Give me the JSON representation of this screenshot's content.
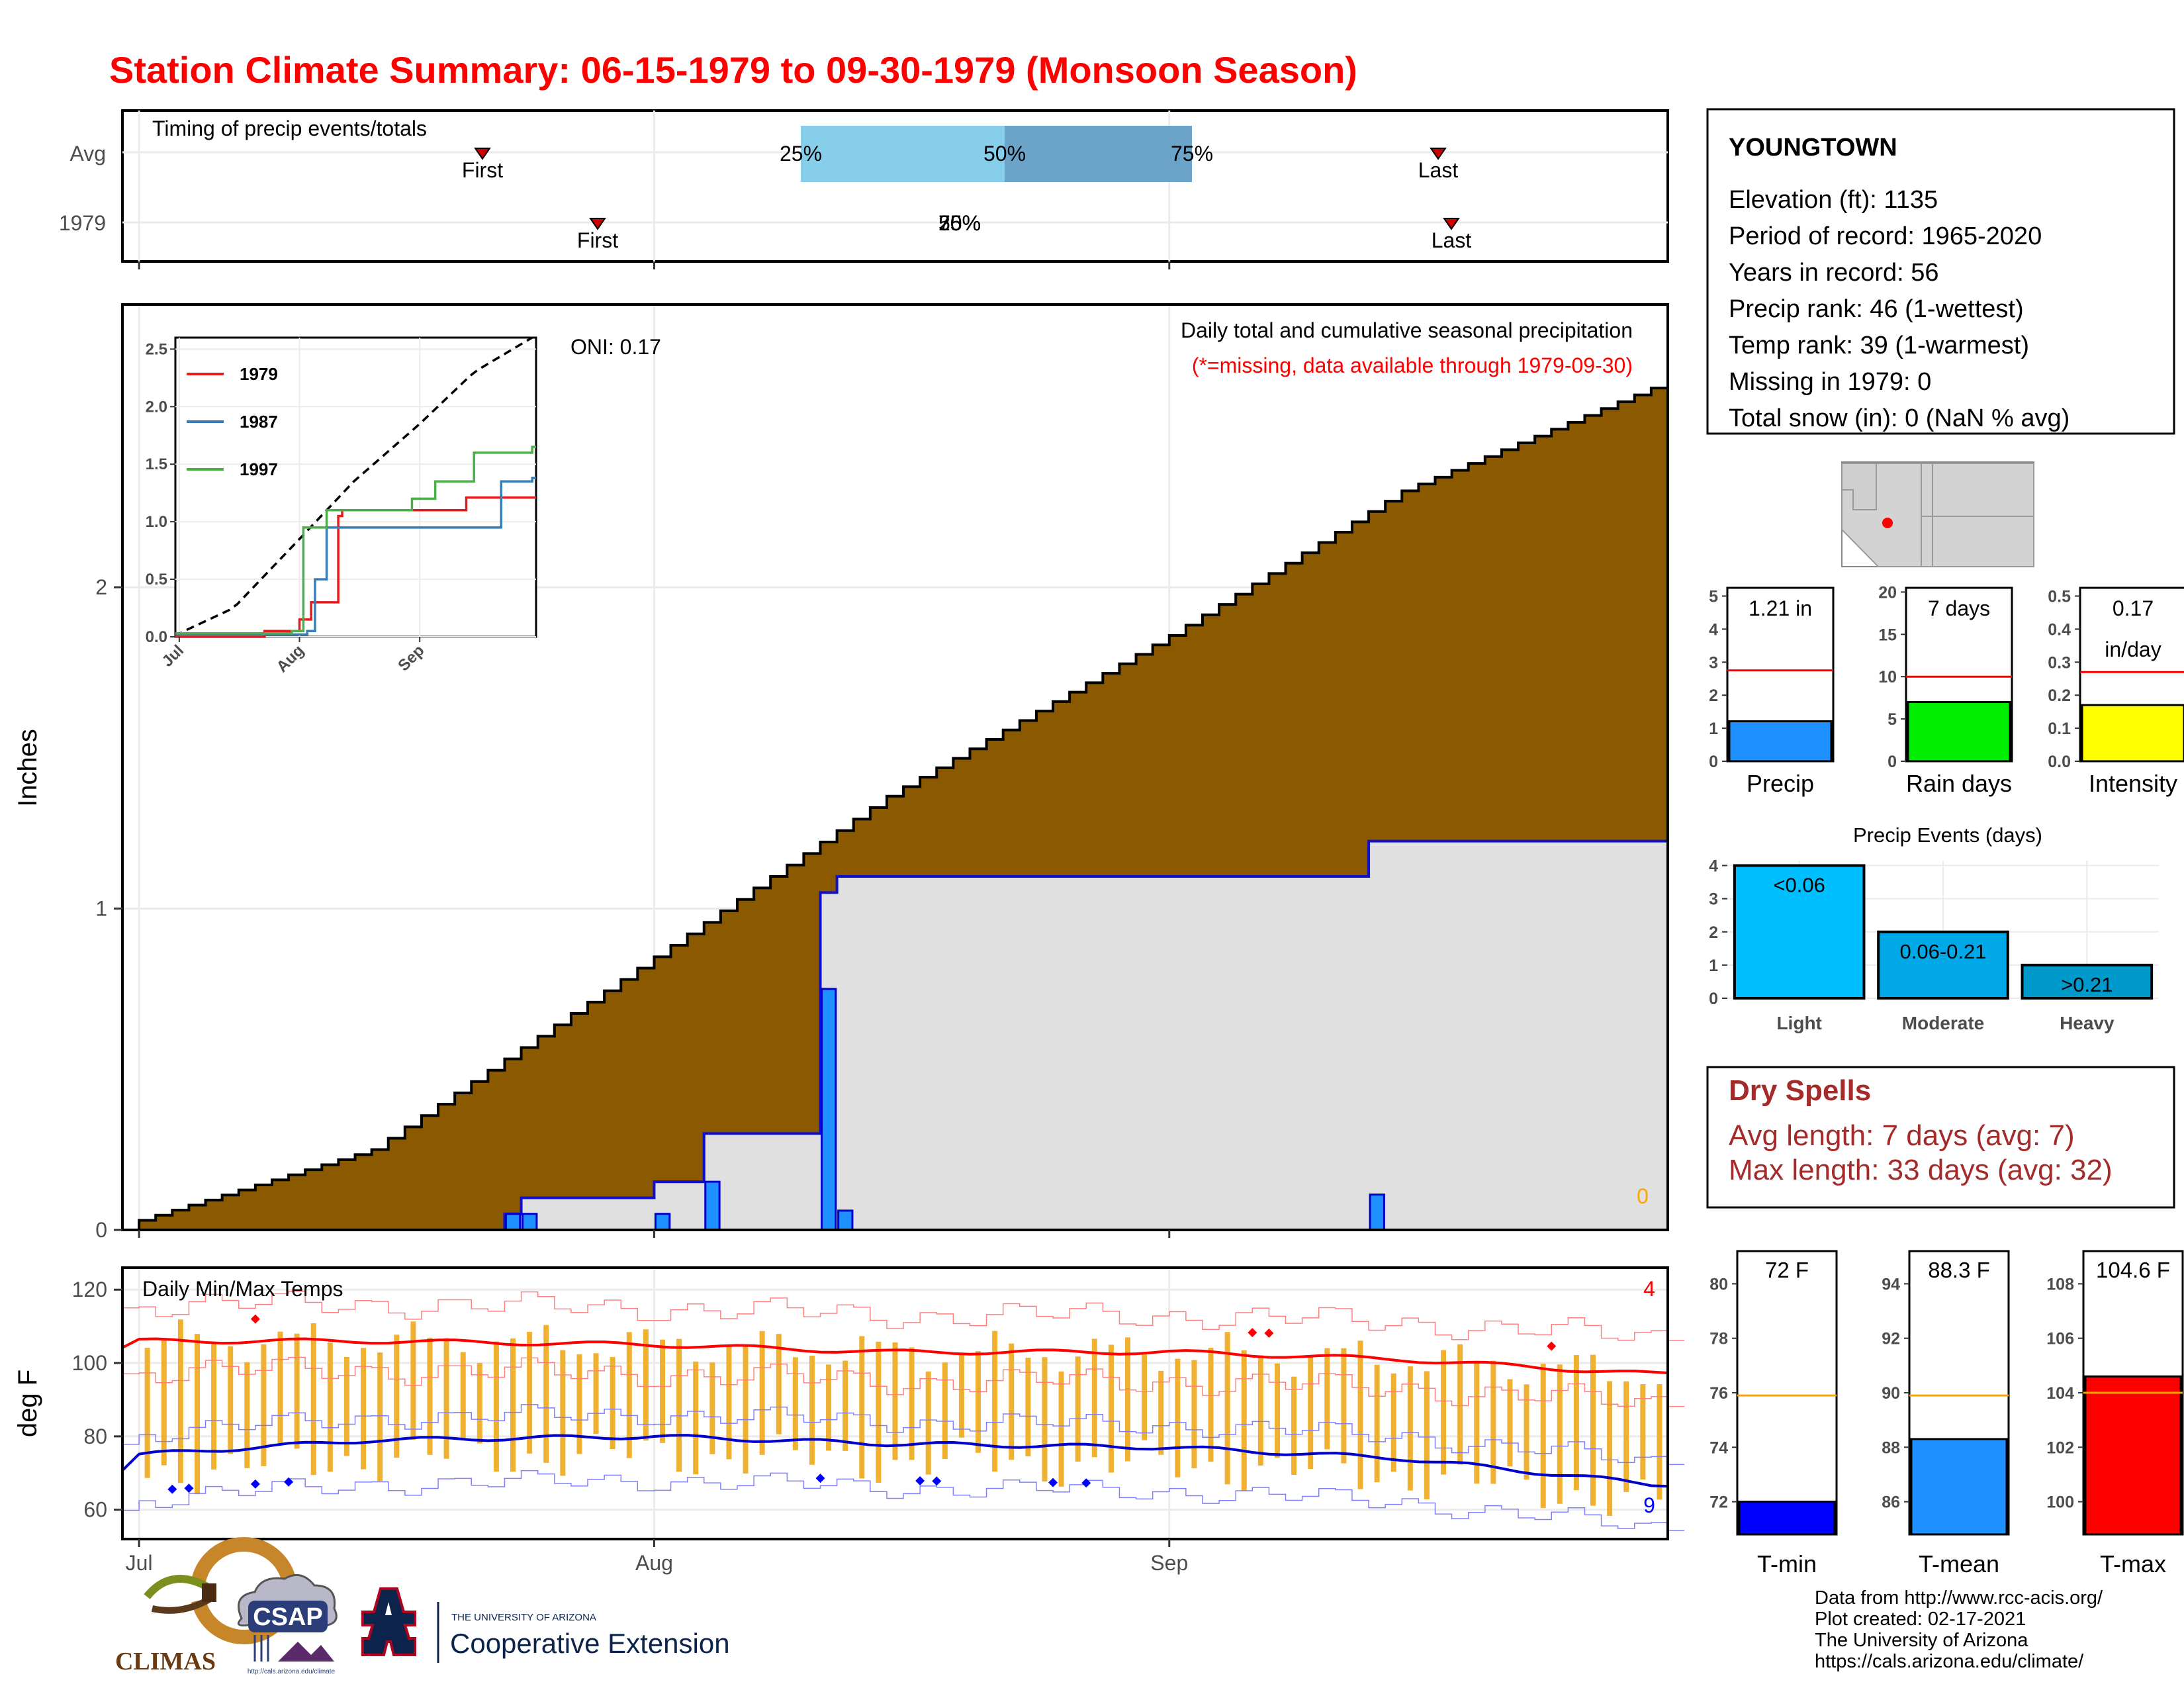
{
  "title": "Station Climate Summary: 06-15-1979 to 09-30-1979 (Monsoon Season)",
  "timing_panel": {
    "label": "Timing of precip events/totals",
    "rows": [
      "Avg",
      "1979"
    ],
    "avg": {
      "first": "First",
      "last": "Last",
      "p25": "25%",
      "p50": "50%",
      "p75": "75%"
    },
    "y1979": {
      "first": "First",
      "last": "Last",
      "overlap_labels": [
        "25%",
        "50%",
        "75%"
      ]
    }
  },
  "main_chart": {
    "ylabel": "Inches",
    "oni": "ONI: 0.17",
    "legend_title": "Daily total and cumulative seasonal precipitation",
    "legend_note": "(*=missing, data available through 1979-09-30)",
    "missing_count": "0",
    "yticks": [
      "0",
      "1",
      "2"
    ],
    "xticks": [
      "Jul",
      "Aug",
      "Sep"
    ],
    "colors": {
      "avg_cum": "#8B5A00",
      "cum_1979": "#1010CC",
      "daily": "#1E90FF",
      "panel_fill": "#E0E0E0"
    }
  },
  "inset": {
    "yticks": [
      "0.0",
      "0.5",
      "1.0",
      "1.5",
      "2.0",
      "2.5"
    ],
    "xticks": [
      "Jul",
      "Aug",
      "Sep"
    ],
    "legend": [
      {
        "name": "1979",
        "color": "#E41A1C"
      },
      {
        "name": "1987",
        "color": "#377EB8"
      },
      {
        "name": "1997",
        "color": "#4DAF4A"
      }
    ]
  },
  "temps": {
    "label": "Daily Min/Max Temps",
    "ylabel": "deg F",
    "yticks": [
      "60",
      "80",
      "100",
      "120"
    ],
    "xticks": [
      "Jul",
      "Aug",
      "Sep"
    ],
    "high_count": "4",
    "low_count": "9"
  },
  "station": {
    "name": "YOUNGTOWN",
    "lines": [
      "Elevation (ft): 1135",
      "Period of record: 1965-2020",
      "Years in record: 56",
      "Precip rank: 46 (1-wettest)",
      "Temp rank: 39 (1-warmest)",
      "Missing in 1979: 0",
      "Total snow (in): 0 (NaN % avg)"
    ]
  },
  "small_bars": [
    {
      "label": "Precip",
      "value_text": "1.21 in",
      "color": "#1E90FF",
      "yticks": [
        "0",
        "1",
        "2",
        "3",
        "4",
        "5"
      ]
    },
    {
      "label": "Rain days",
      "value_text": "7 days",
      "color": "#00EE00",
      "yticks": [
        "0",
        "5",
        "10",
        "15",
        "20"
      ]
    },
    {
      "label": "Intensity",
      "value_text": "0.17",
      "value_text2": "in/day",
      "color": "#FFFF00",
      "yticks": [
        "0.0",
        "0.1",
        "0.2",
        "0.3",
        "0.4",
        "0.5"
      ]
    }
  ],
  "precip_events": {
    "title": "Precip Events (days)",
    "yticks": [
      "0",
      "1",
      "2",
      "3",
      "4"
    ],
    "bars": [
      {
        "label": "Light",
        "value_text": "<0.06",
        "color": "#00BFFF"
      },
      {
        "label": "Moderate",
        "value_text": "0.06-0.21",
        "color": "#00A8E8"
      },
      {
        "label": "Heavy",
        "value_text": ">0.21",
        "color": "#0099CC"
      }
    ]
  },
  "dry_spells": {
    "title": "Dry Spells",
    "avg_line": "Avg length: 7 days (avg: 7)",
    "max_line": "Max length: 33 days (avg: 32)"
  },
  "temp_bars": [
    {
      "label": "T-min",
      "value_text": "72 F",
      "color": "#0000FF",
      "yticks": [
        "72",
        "74",
        "76",
        "78",
        "80"
      ]
    },
    {
      "label": "T-mean",
      "value_text": "88.3 F",
      "color": "#1E90FF",
      "yticks": [
        "86",
        "88",
        "90",
        "92",
        "94"
      ]
    },
    {
      "label": "T-max",
      "value_text": "104.6 F",
      "color": "#FF0000",
      "yticks": [
        "100",
        "102",
        "104",
        "106",
        "108"
      ]
    }
  ],
  "footer": {
    "lines": [
      "Data from http://www.rcc-acis.org/",
      "Plot created: 02-17-2021",
      "The University of Arizona",
      "https://cals.arizona.edu/climate/"
    ],
    "logos": {
      "climas": "CLIMAS",
      "csap": "CSAP",
      "csap_url": "http://cals.arizona.edu/climate",
      "ua_small": "THE UNIVERSITY OF ARIZONA",
      "ua_big": "Cooperative Extension"
    }
  },
  "chart_data": [
    {
      "type": "area",
      "title": "Daily total and cumulative seasonal precipitation",
      "ylabel": "Inches",
      "x_range": [
        "1979-06-15",
        "1979-09-30"
      ],
      "ylim": [
        0,
        2.6
      ],
      "series": [
        {
          "name": "avg cumulative",
          "x": [
            "06-15",
            "07-01",
            "07-15",
            "08-01",
            "08-15",
            "09-01",
            "09-15",
            "09-30"
          ],
          "values": [
            0,
            0.03,
            0.25,
            0.85,
            1.35,
            1.85,
            2.3,
            2.62
          ]
        },
        {
          "name": "1979 cumulative",
          "x": [
            "07-23",
            "07-24",
            "08-01",
            "08-04",
            "08-07",
            "08-11",
            "08-12",
            "09-13",
            "09-30"
          ],
          "values": [
            0.05,
            0.1,
            0.15,
            0.3,
            0.3,
            1.05,
            1.1,
            1.21,
            1.21
          ]
        },
        {
          "name": "1979 daily",
          "x": [
            "07-23",
            "07-24",
            "08-01",
            "08-04",
            "08-11",
            "08-12",
            "09-13"
          ],
          "values": [
            0.05,
            0.05,
            0.05,
            0.15,
            0.75,
            0.06,
            0.11
          ]
        }
      ]
    },
    {
      "type": "line",
      "title": "inset cumulative precipitation",
      "ylim": [
        0,
        2.6
      ],
      "series": [
        {
          "name": "avg",
          "x": [
            "06-15",
            "07-01",
            "07-15",
            "08-01",
            "08-15",
            "09-01",
            "09-15",
            "09-30"
          ],
          "values": [
            0,
            0.03,
            0.25,
            0.85,
            1.35,
            1.85,
            2.3,
            2.6
          ]
        },
        {
          "name": "1979",
          "x": [
            "06-15",
            "07-23",
            "08-01",
            "08-04",
            "08-11",
            "08-12",
            "09-13",
            "09-30"
          ],
          "values": [
            0,
            0.05,
            0.15,
            0.3,
            1.05,
            1.1,
            1.21,
            1.21
          ]
        },
        {
          "name": "1987",
          "x": [
            "06-15",
            "08-03",
            "08-05",
            "08-08",
            "09-20",
            "09-22",
            "09-30"
          ],
          "values": [
            0.02,
            0.05,
            0.5,
            0.95,
            0.95,
            1.35,
            1.38
          ]
        },
        {
          "name": "1997",
          "x": [
            "06-15",
            "07-30",
            "08-02",
            "08-08",
            "08-30",
            "09-05",
            "09-15",
            "09-30"
          ],
          "values": [
            0.03,
            0.05,
            0.95,
            1.1,
            1.2,
            1.35,
            1.6,
            1.65
          ]
        }
      ]
    },
    {
      "type": "line",
      "title": "Daily Min/Max Temps",
      "ylabel": "deg F",
      "ylim": [
        52,
        126
      ],
      "series": [
        {
          "name": "avg max",
          "x": [
            "06-15",
            "07-01",
            "07-15",
            "08-01",
            "08-15",
            "09-01",
            "09-15",
            "09-30"
          ],
          "values": [
            104,
            106,
            106,
            105,
            103,
            103,
            101,
            97
          ]
        },
        {
          "name": "avg min",
          "x": [
            "06-15",
            "07-01",
            "07-15",
            "08-01",
            "08-15",
            "09-01",
            "09-15",
            "09-30"
          ],
          "values": [
            71,
            75,
            79,
            80,
            78,
            77,
            74,
            67
          ]
        }
      ]
    },
    {
      "type": "bar",
      "title": "Precip Events (days)",
      "categories": [
        "Light",
        "Moderate",
        "Heavy"
      ],
      "values": [
        4,
        2,
        1
      ],
      "ylim": [
        0,
        4
      ]
    },
    {
      "type": "bar",
      "categories": [
        "Precip",
        "Rain days",
        "Intensity",
        "T-min",
        "T-mean",
        "T-max"
      ],
      "values": [
        1.21,
        7,
        0.17,
        72,
        88.3,
        104.6
      ],
      "averages": [
        2.75,
        10,
        0.27,
        75.9,
        89.9,
        104
      ]
    }
  ]
}
